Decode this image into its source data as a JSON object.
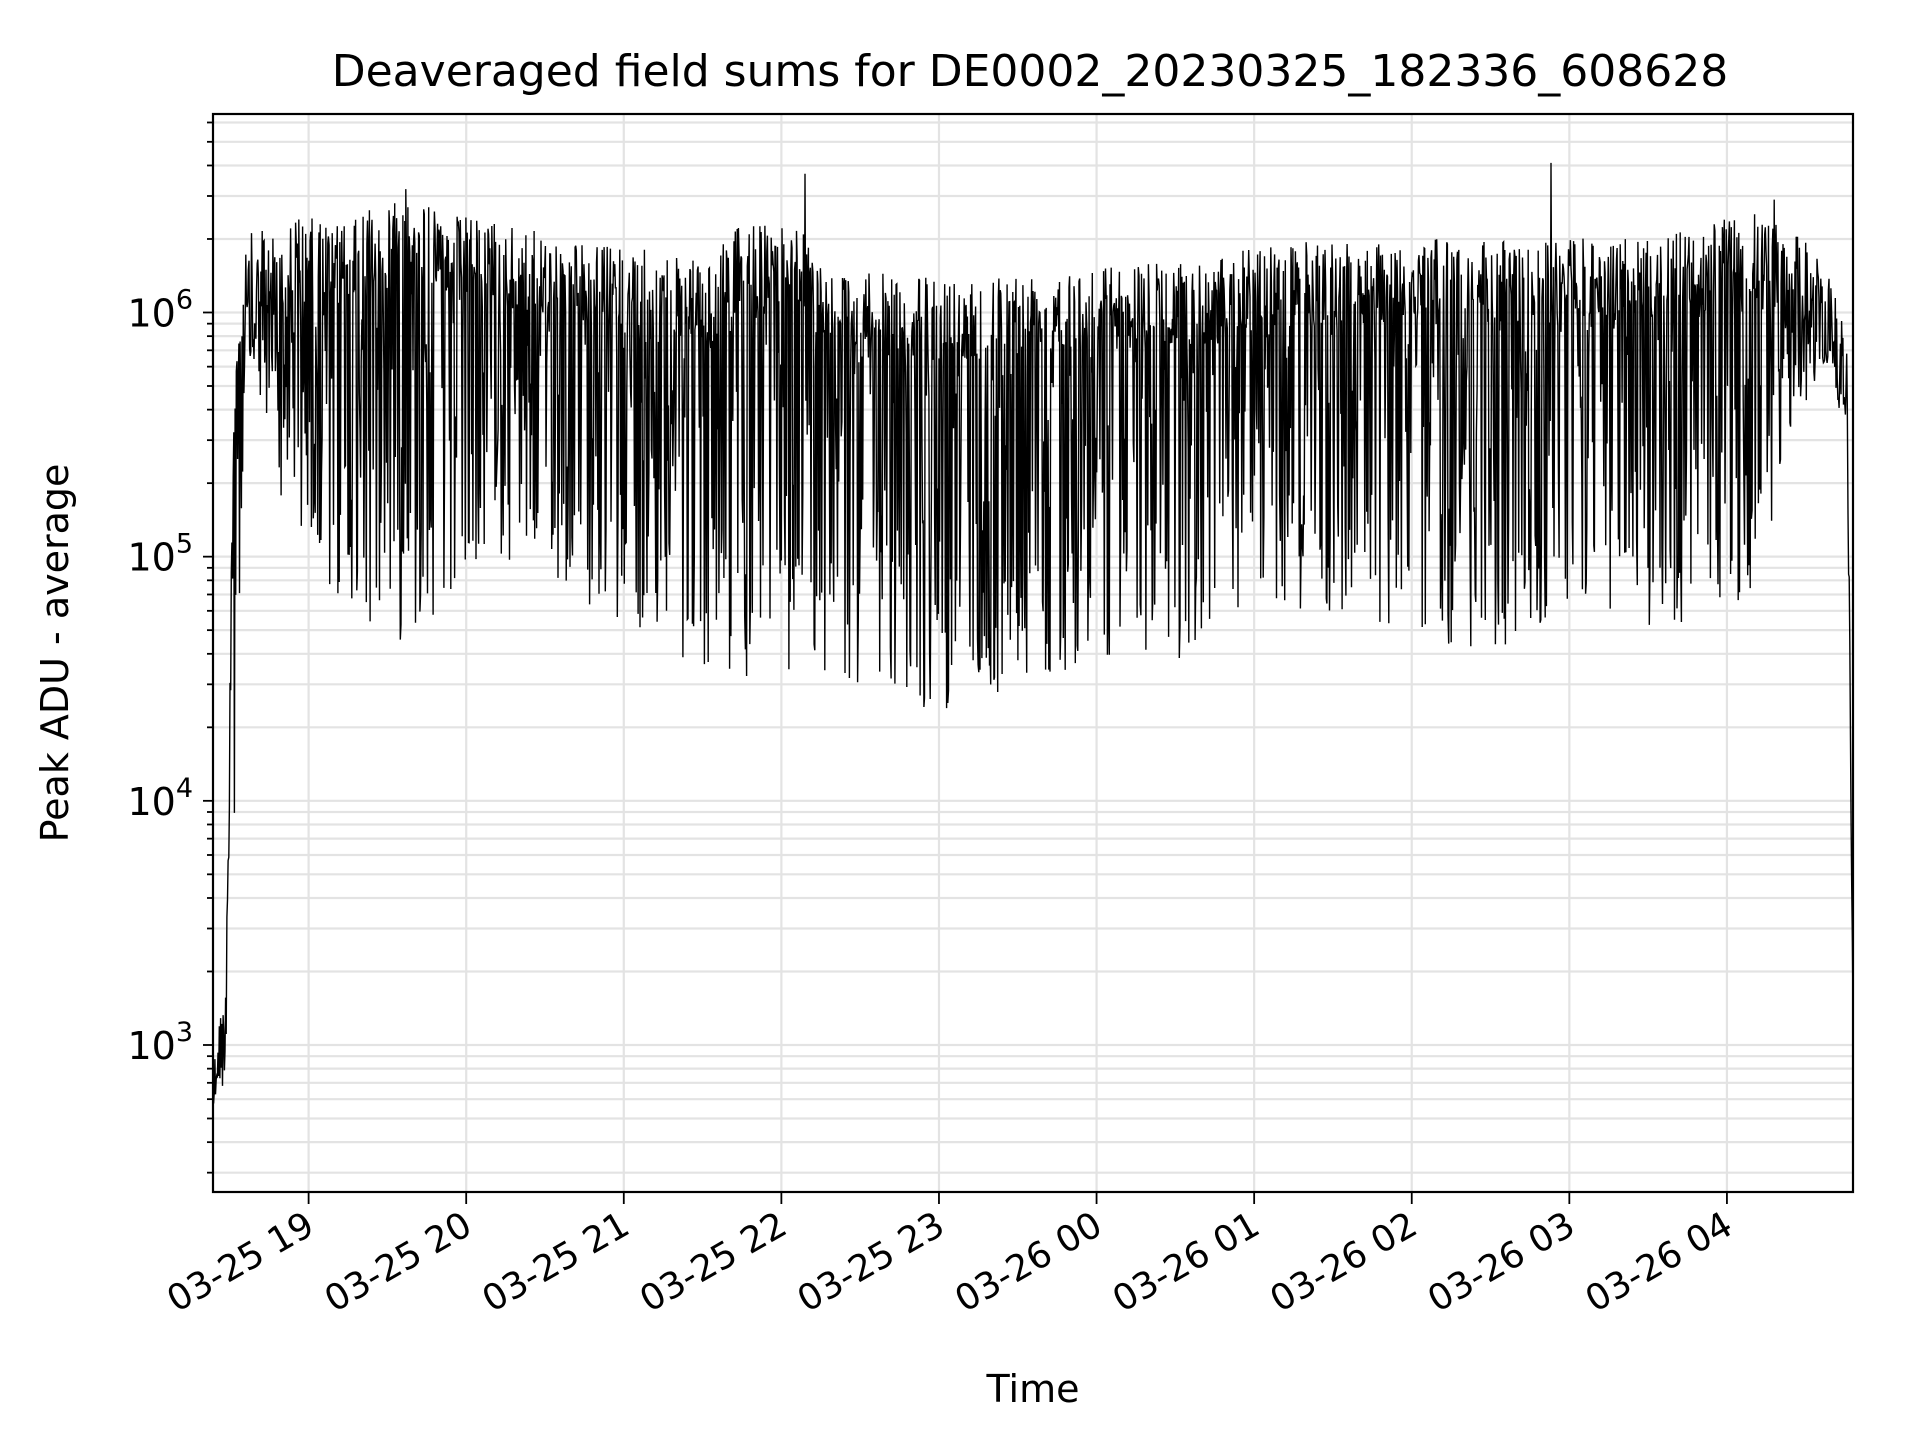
{
  "chart_data": {
    "type": "line",
    "title": "Deaveraged field sums for DE0002_20230325_182336_608628",
    "xlabel": "Time",
    "ylabel": "Peak ADU - average",
    "yscale": "log",
    "ylim": [
      250,
      6500000
    ],
    "xlim": [
      "2023-03-25 18:23:36",
      "2023-03-26 04:48:00"
    ],
    "grid": "on (major and minor)",
    "line_color": "#000000",
    "x_ticks": [
      {
        "label": "03-25 19",
        "value": "2023-03-25 19:00"
      },
      {
        "label": "03-25 20",
        "value": "2023-03-25 20:00"
      },
      {
        "label": "03-25 21",
        "value": "2023-03-25 21:00"
      },
      {
        "label": "03-25 22",
        "value": "2023-03-25 22:00"
      },
      {
        "label": "03-25 23",
        "value": "2023-03-25 23:00"
      },
      {
        "label": "03-26 00",
        "value": "2023-03-26 00:00"
      },
      {
        "label": "03-26 01",
        "value": "2023-03-26 01:00"
      },
      {
        "label": "03-26 02",
        "value": "2023-03-26 02:00"
      },
      {
        "label": "03-26 03",
        "value": "2023-03-26 03:00"
      },
      {
        "label": "03-26 04",
        "value": "2023-03-26 04:00"
      }
    ],
    "y_ticks": [
      {
        "base": "10",
        "exp": "3",
        "value": 1000
      },
      {
        "base": "10",
        "exp": "4",
        "value": 10000
      },
      {
        "base": "10",
        "exp": "5",
        "value": 100000
      },
      {
        "base": "10",
        "exp": "6",
        "value": 1000000
      }
    ],
    "envelope": [
      {
        "t": "2023-03-25 18:23:36",
        "high": 1800,
        "low": 450
      },
      {
        "t": "2023-03-25 18:28:00",
        "high": 1700,
        "low": 700
      },
      {
        "t": "2023-03-25 18:32:00",
        "high": 800000,
        "low": 5000
      },
      {
        "t": "2023-03-25 18:36:00",
        "high": 2100000,
        "low": 600000
      },
      {
        "t": "2023-03-25 18:45:00",
        "high": 2200000,
        "low": 300000
      },
      {
        "t": "2023-03-25 18:55:00",
        "high": 2500000,
        "low": 90000
      },
      {
        "t": "2023-03-25 19:15:00",
        "high": 2300000,
        "low": 60000
      },
      {
        "t": "2023-03-25 19:35:00",
        "high": 3200000,
        "low": 45000
      },
      {
        "t": "2023-03-25 19:50:00",
        "high": 2600000,
        "low": 60000
      },
      {
        "t": "2023-03-25 20:10:00",
        "high": 2400000,
        "low": 90000
      },
      {
        "t": "2023-03-25 20:30:00",
        "high": 2100000,
        "low": 85000
      },
      {
        "t": "2023-03-25 20:50:00",
        "high": 1900000,
        "low": 60000
      },
      {
        "t": "2023-03-25 21:10:00",
        "high": 1800000,
        "low": 45000
      },
      {
        "t": "2023-03-25 21:30:00",
        "high": 1600000,
        "low": 35000
      },
      {
        "t": "2023-03-25 21:45:00",
        "high": 2300000,
        "low": 28000
      },
      {
        "t": "2023-03-25 22:05:00",
        "high": 2400000,
        "low": 33000
      },
      {
        "t": "2023-03-25 22:20:00",
        "high": 1500000,
        "low": 30000
      },
      {
        "t": "2023-03-25 22:55:00",
        "high": 1400000,
        "low": 23000
      },
      {
        "t": "2023-03-25 23:30:00",
        "high": 1500000,
        "low": 27000
      },
      {
        "t": "2023-03-26 00:00:00",
        "high": 1600000,
        "low": 40000
      },
      {
        "t": "2023-03-26 00:40:00",
        "high": 1600000,
        "low": 35000
      },
      {
        "t": "2023-03-26 01:00:00",
        "high": 1900000,
        "low": 60000
      },
      {
        "t": "2023-03-26 01:40:00",
        "high": 2000000,
        "low": 55000
      },
      {
        "t": "2023-03-26 02:30:00",
        "high": 2000000,
        "low": 38000
      },
      {
        "t": "2023-03-26 03:00:00",
        "high": 2000000,
        "low": 60000
      },
      {
        "t": "2023-03-26 03:40:00",
        "high": 2100000,
        "low": 50000
      },
      {
        "t": "2023-03-26 04:10:00",
        "high": 2600000,
        "low": 60000
      },
      {
        "t": "2023-03-26 04:25:00",
        "high": 2200000,
        "low": 350000
      },
      {
        "t": "2023-03-26 04:40:00",
        "high": 1500000,
        "low": 600000
      },
      {
        "t": "2023-03-26 04:46:00",
        "high": 800000,
        "low": 180000
      },
      {
        "t": "2023-03-26 04:48:00",
        "high": 1500,
        "low": 1400
      }
    ],
    "spikes": [
      {
        "t": "2023-03-25 19:37:00",
        "value": 3200000
      },
      {
        "t": "2023-03-25 22:09:00",
        "value": 3700000
      },
      {
        "t": "2023-03-26 02:53:00",
        "value": 4100000
      },
      {
        "t": "2023-03-26 04:18:00",
        "value": 2900000
      }
    ]
  }
}
